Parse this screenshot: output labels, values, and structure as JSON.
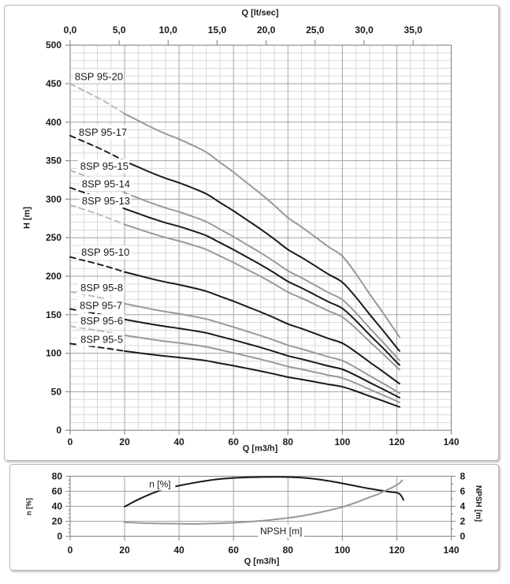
{
  "colors": {
    "dark_curve": "#1a1a1a",
    "gray_curve": "#999999",
    "gray_dash": "#b9b9b9",
    "grid_minor": "#d9d9d9",
    "grid_major": "#a3a3a3",
    "axis_line": "#8f8f8f",
    "text": "#1a1a1a",
    "box_border": "#b9b9b9",
    "background": "#ffffff"
  },
  "chart_data": [
    {
      "id": "head-curves",
      "type": "line",
      "top_axis_label": "Q [lt/sec]",
      "xlabel": "Q [m3/h]",
      "ylabel": "H [m]",
      "xlim": [
        0,
        140
      ],
      "ylim": [
        0,
        500
      ],
      "top_axis_lim": [
        0,
        38.89
      ],
      "x_ticks": [
        0,
        20,
        40,
        60,
        80,
        100,
        120,
        140
      ],
      "y_ticks": [
        0,
        50,
        100,
        150,
        200,
        250,
        300,
        350,
        400,
        450,
        500
      ],
      "top_ticks": [
        {
          "v": 0,
          "label": "0,0"
        },
        {
          "v": 5,
          "label": "5,0"
        },
        {
          "v": 10,
          "label": "10,0"
        },
        {
          "v": 15,
          "label": "15,0"
        },
        {
          "v": 20,
          "label": "20,0"
        },
        {
          "v": 25,
          "label": "25,0"
        },
        {
          "v": 30,
          "label": "30,0"
        },
        {
          "v": 35,
          "label": "35,0"
        }
      ],
      "grid": {
        "x_minor_step": 5,
        "x_major_step": 20,
        "y_minor_step": 10,
        "y_major_step": 50,
        "grid_on": true
      },
      "lt_per_m3h": 0.2778,
      "dashed_until_q": 20,
      "q": [
        0,
        5,
        10,
        15,
        20,
        25,
        30,
        35,
        40,
        45,
        50,
        55,
        60,
        65,
        70,
        75,
        80,
        85,
        90,
        95,
        100,
        105,
        110,
        115,
        120,
        121
      ],
      "series": [
        {
          "name": "8SP 95-20",
          "stages": 20,
          "color": "gray",
          "label_q": 1.7,
          "label_h": 459,
          "h": [
            450,
            441,
            432,
            422,
            411,
            402,
            393,
            385,
            378,
            370,
            361,
            348,
            335,
            321,
            307,
            292,
            276,
            264,
            251,
            238,
            226,
            203,
            177,
            152,
            126,
            121
          ]
        },
        {
          "name": "8SP 95-17",
          "stages": 17,
          "color": "dark",
          "label_q": 3.2,
          "label_h": 387,
          "h": [
            382.5,
            374.9,
            367.2,
            358.7,
            349.4,
            341.7,
            334.1,
            327.3,
            321.3,
            314.5,
            306.9,
            295.8,
            284.8,
            272.9,
            261,
            248.2,
            234.6,
            224.4,
            213.4,
            202.3,
            192.1,
            172.6,
            150.5,
            129.2,
            107.1,
            102.9
          ]
        },
        {
          "name": "8SP 95-15",
          "stages": 15,
          "color": "gray",
          "label_q": 3.7,
          "label_h": 343,
          "h": [
            337.5,
            330.8,
            324,
            316.5,
            308.3,
            301.5,
            294.8,
            288.8,
            283.5,
            277.5,
            270.8,
            261,
            251.3,
            240.8,
            230.3,
            219,
            207,
            198,
            188.3,
            178.5,
            169.5,
            152.3,
            132.8,
            114,
            94.5,
            90.8
          ]
        },
        {
          "name": "8SP 95-14",
          "stages": 14,
          "color": "dark",
          "label_q": 4.3,
          "label_h": 320,
          "h": [
            315,
            308.7,
            302.4,
            295.4,
            287.7,
            281.4,
            275.1,
            269.5,
            264.6,
            259,
            252.7,
            243.6,
            234.5,
            224.7,
            214.9,
            204.4,
            193.2,
            184.8,
            175.7,
            166.6,
            158.2,
            142.1,
            123.9,
            106.4,
            88.2,
            84.7
          ]
        },
        {
          "name": "8SP 95-13",
          "stages": 13,
          "color": "gray",
          "label_q": 4.3,
          "label_h": 298,
          "h": [
            292.5,
            286.7,
            280.8,
            274.3,
            267.2,
            261.3,
            255.5,
            250.3,
            245.7,
            240.5,
            234.7,
            226.2,
            217.8,
            208.7,
            199.6,
            189.8,
            179.4,
            171.6,
            163.2,
            154.7,
            146.9,
            132,
            115.1,
            98.8,
            81.9,
            78.7
          ]
        },
        {
          "name": "8SP 95-10",
          "stages": 10,
          "color": "dark",
          "label_q": 4.1,
          "label_h": 231,
          "h": [
            225,
            220.5,
            216,
            211,
            205.5,
            201,
            196.5,
            192.5,
            189,
            185,
            180.5,
            174,
            167.5,
            160.5,
            153.5,
            146,
            138,
            132,
            125.5,
            119,
            113,
            101.5,
            88.5,
            76,
            63,
            60.5
          ]
        },
        {
          "name": "8SP 95-8",
          "stages": 8,
          "color": "gray",
          "label_q": 3.8,
          "label_h": 185,
          "h": [
            180,
            176.4,
            172.8,
            168.8,
            164.4,
            160.8,
            157.2,
            154,
            151.2,
            148,
            144.4,
            139.2,
            134,
            128.4,
            122.8,
            116.8,
            110.4,
            105.6,
            100.4,
            95.2,
            90.4,
            81.2,
            70.8,
            60.8,
            50.4,
            48.4
          ]
        },
        {
          "name": "8SP 95-7",
          "stages": 7,
          "color": "dark",
          "label_q": 3.5,
          "label_h": 162,
          "h": [
            157.5,
            154.4,
            151.2,
            147.7,
            143.9,
            140.7,
            137.6,
            134.8,
            132.3,
            129.5,
            126.4,
            121.8,
            117.3,
            112.4,
            107.5,
            102.2,
            96.6,
            92.4,
            87.9,
            83.3,
            79.1,
            71.1,
            62,
            53.2,
            44.1,
            42.4
          ]
        },
        {
          "name": "8SP 95-6",
          "stages": 6,
          "color": "gray",
          "label_q": 3.8,
          "label_h": 142,
          "h": [
            135,
            132.3,
            129.6,
            126.6,
            123.3,
            120.6,
            117.9,
            115.5,
            113.4,
            111,
            108.3,
            104.4,
            100.5,
            96.3,
            92.1,
            87.6,
            82.8,
            79.2,
            75.3,
            71.4,
            67.8,
            60.9,
            53.1,
            45.6,
            37.8,
            36.3
          ]
        },
        {
          "name": "8SP 95-5",
          "stages": 5,
          "color": "dark",
          "label_q": 3.8,
          "label_h": 118,
          "h": [
            112.5,
            110.3,
            108,
            105.5,
            102.8,
            100.5,
            98.3,
            96.3,
            94.5,
            92.5,
            90.3,
            87,
            83.8,
            80.3,
            76.8,
            73,
            69,
            66,
            62.8,
            59.5,
            56.5,
            50.8,
            44.3,
            38,
            31.5,
            30.3
          ]
        }
      ]
    },
    {
      "id": "efficiency-npsh",
      "type": "line",
      "xlabel": "Q [m3/h]",
      "ylabel_left": "n [%]",
      "ylabel_right": "NPSH [m]",
      "xlim": [
        0,
        140
      ],
      "ylim_left": [
        0,
        80
      ],
      "ylim_right": [
        0,
        8
      ],
      "x_ticks": [
        0,
        20,
        40,
        60,
        80,
        100,
        120,
        140
      ],
      "y_ticks_left": [
        0,
        20,
        40,
        60,
        80
      ],
      "y_ticks_right": [
        0,
        2,
        4,
        6,
        8
      ],
      "grid": {
        "x_major_step": 20,
        "y_left_major_step": 20,
        "grid_on": true
      },
      "series": [
        {
          "name": "n [%]",
          "axis": "left",
          "color": "dark",
          "label_q": 33,
          "label_v": 69.5,
          "points": [
            [
              20,
              39.5
            ],
            [
              25,
              49
            ],
            [
              30,
              57
            ],
            [
              35,
              63.5
            ],
            [
              40,
              67.5
            ],
            [
              45,
              71
            ],
            [
              50,
              74
            ],
            [
              55,
              76.3
            ],
            [
              60,
              77.7
            ],
            [
              65,
              78.6
            ],
            [
              70,
              79
            ],
            [
              75,
              79.2
            ],
            [
              80,
              79
            ],
            [
              85,
              78.2
            ],
            [
              90,
              76.5
            ],
            [
              95,
              73.8
            ],
            [
              100,
              70.5
            ],
            [
              105,
              67
            ],
            [
              110,
              63.5
            ],
            [
              115,
              60.5
            ],
            [
              118,
              59
            ],
            [
              120,
              58
            ],
            [
              121,
              56.5
            ],
            [
              121.8,
              53
            ],
            [
              122.4,
              48.5
            ]
          ]
        },
        {
          "name": "NPSH [m]",
          "axis": "right",
          "color": "gray",
          "label_q": 77.5,
          "label_v": 0.68,
          "points": [
            [
              20,
              1.85
            ],
            [
              30,
              1.72
            ],
            [
              40,
              1.67
            ],
            [
              45,
              1.65
            ],
            [
              50,
              1.68
            ],
            [
              60,
              1.8
            ],
            [
              70,
              2.05
            ],
            [
              80,
              2.45
            ],
            [
              85,
              2.7
            ],
            [
              90,
              3.05
            ],
            [
              95,
              3.45
            ],
            [
              100,
              3.9
            ],
            [
              105,
              4.5
            ],
            [
              110,
              5.2
            ],
            [
              113,
              5.6
            ],
            [
              115,
              5.95
            ],
            [
              118,
              6.45
            ],
            [
              120,
              6.85
            ],
            [
              121,
              7.1
            ],
            [
              122,
              7.45
            ]
          ]
        }
      ]
    }
  ]
}
